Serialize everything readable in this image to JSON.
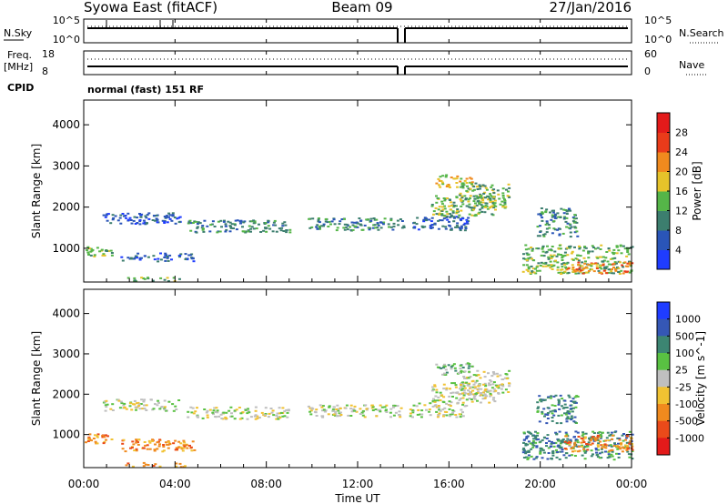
{
  "header": {
    "title_left": "Syowa East (fitACF)",
    "title_center": "Beam 09",
    "title_right": "27/Jan/2016"
  },
  "noise_panel": {
    "left_label": "N.Sky",
    "right_label": "N.Search",
    "tick_top": "10^5",
    "tick_bottom": "10^0"
  },
  "freq_panel": {
    "left_label_top": "Freq.",
    "left_label_bottom": "[MHz]",
    "left_ticks": [
      "18",
      "8"
    ],
    "right_ticks": [
      "60",
      "0"
    ],
    "right_label": "Nave"
  },
  "cpid": {
    "label": "CPID",
    "text": "normal (fast) 151 RF"
  },
  "time_axis": {
    "label": "Time UT",
    "ticks": [
      "00:00",
      "04:00",
      "08:00",
      "12:00",
      "16:00",
      "20:00",
      "00:00"
    ]
  },
  "chart_data": [
    {
      "type": "heatmap",
      "parameter": "power",
      "ylabel": "Slant Range [km]",
      "yticks": [
        1000,
        2000,
        3000,
        4000
      ],
      "ylim": [
        180,
        4600
      ],
      "xlim_hours": [
        0,
        24
      ],
      "colorbar": {
        "label": "Power [dB]",
        "ticks": [
          "4",
          "8",
          "12",
          "16",
          "20",
          "24",
          "28"
        ],
        "colors": [
          "#1f3cff",
          "#2a55b8",
          "#3c7e6e",
          "#55b548",
          "#e6c32a",
          "#f08a1e",
          "#ea3b1a",
          "#e31a1a"
        ]
      },
      "echo_regions": [
        {
          "t": [
            0.8,
            4.2
          ],
          "r": [
            1600,
            1900
          ],
          "level": 1
        },
        {
          "t": [
            1.6,
            4.8
          ],
          "r": [
            700,
            900
          ],
          "level": 1
        },
        {
          "t": [
            4.5,
            9.0
          ],
          "r": [
            1400,
            1700
          ],
          "level": 2
        },
        {
          "t": [
            0.0,
            1.2
          ],
          "r": [
            800,
            1050
          ],
          "level": 3
        },
        {
          "t": [
            1.8,
            4.4
          ],
          "r": [
            220,
            320
          ],
          "level": 3
        },
        {
          "t": [
            9.8,
            14.0
          ],
          "r": [
            1450,
            1750
          ],
          "level": 2
        },
        {
          "t": [
            14.2,
            16.8
          ],
          "r": [
            1450,
            1800
          ],
          "level": 1
        },
        {
          "t": [
            15.2,
            18.0
          ],
          "r": [
            1800,
            2300
          ],
          "level": 3
        },
        {
          "t": [
            15.4,
            17.0
          ],
          "r": [
            2500,
            2800
          ],
          "level": 4
        },
        {
          "t": [
            16.4,
            18.6
          ],
          "r": [
            2000,
            2600
          ],
          "level": 3
        },
        {
          "t": [
            19.2,
            24.0
          ],
          "r": [
            400,
            1100
          ],
          "level": 3
        },
        {
          "t": [
            21.0,
            24.0
          ],
          "r": [
            400,
            700
          ],
          "level": 5
        },
        {
          "t": [
            19.8,
            21.6
          ],
          "r": [
            1300,
            2000
          ],
          "level": 2
        }
      ]
    },
    {
      "type": "heatmap",
      "parameter": "velocity",
      "ylabel": "Slant Range [km]",
      "yticks": [
        1000,
        2000,
        3000,
        4000
      ],
      "ylim": [
        180,
        4600
      ],
      "xlim_hours": [
        0,
        24
      ],
      "colorbar": {
        "label": "Velocity [m s^-1]",
        "ticks": [
          "1000",
          "500",
          "100",
          "25",
          "-25",
          "-100",
          "-500",
          "-1000"
        ],
        "colors": [
          "#1f3cff",
          "#3557b5",
          "#3c8572",
          "#59c142",
          "#bfbfbf",
          "#f1c232",
          "#f08a1e",
          "#ea4a1a",
          "#e31a1a"
        ]
      },
      "echo_regions": [
        {
          "t": [
            0.8,
            4.2
          ],
          "r": [
            1600,
            1900
          ],
          "level": 4
        },
        {
          "t": [
            1.6,
            4.8
          ],
          "r": [
            600,
            900
          ],
          "level": 6
        },
        {
          "t": [
            4.5,
            9.0
          ],
          "r": [
            1400,
            1700
          ],
          "level": 4
        },
        {
          "t": [
            0.0,
            1.2
          ],
          "r": [
            800,
            1050
          ],
          "level": 6
        },
        {
          "t": [
            1.8,
            4.4
          ],
          "r": [
            220,
            320
          ],
          "level": 6
        },
        {
          "t": [
            9.8,
            14.0
          ],
          "r": [
            1450,
            1750
          ],
          "level": 4
        },
        {
          "t": [
            14.2,
            16.8
          ],
          "r": [
            1450,
            1800
          ],
          "level": 4
        },
        {
          "t": [
            15.2,
            18.0
          ],
          "r": [
            1800,
            2300
          ],
          "level": 4
        },
        {
          "t": [
            15.4,
            17.0
          ],
          "r": [
            2500,
            2800
          ],
          "level": 3
        },
        {
          "t": [
            16.4,
            18.6
          ],
          "r": [
            2000,
            2600
          ],
          "level": 4
        },
        {
          "t": [
            19.2,
            24.0
          ],
          "r": [
            400,
            1100
          ],
          "level": 2
        },
        {
          "t": [
            21.0,
            24.0
          ],
          "r": [
            600,
            1000
          ],
          "level": 6
        },
        {
          "t": [
            19.8,
            21.6
          ],
          "r": [
            1300,
            2000
          ],
          "level": 2
        }
      ]
    }
  ]
}
